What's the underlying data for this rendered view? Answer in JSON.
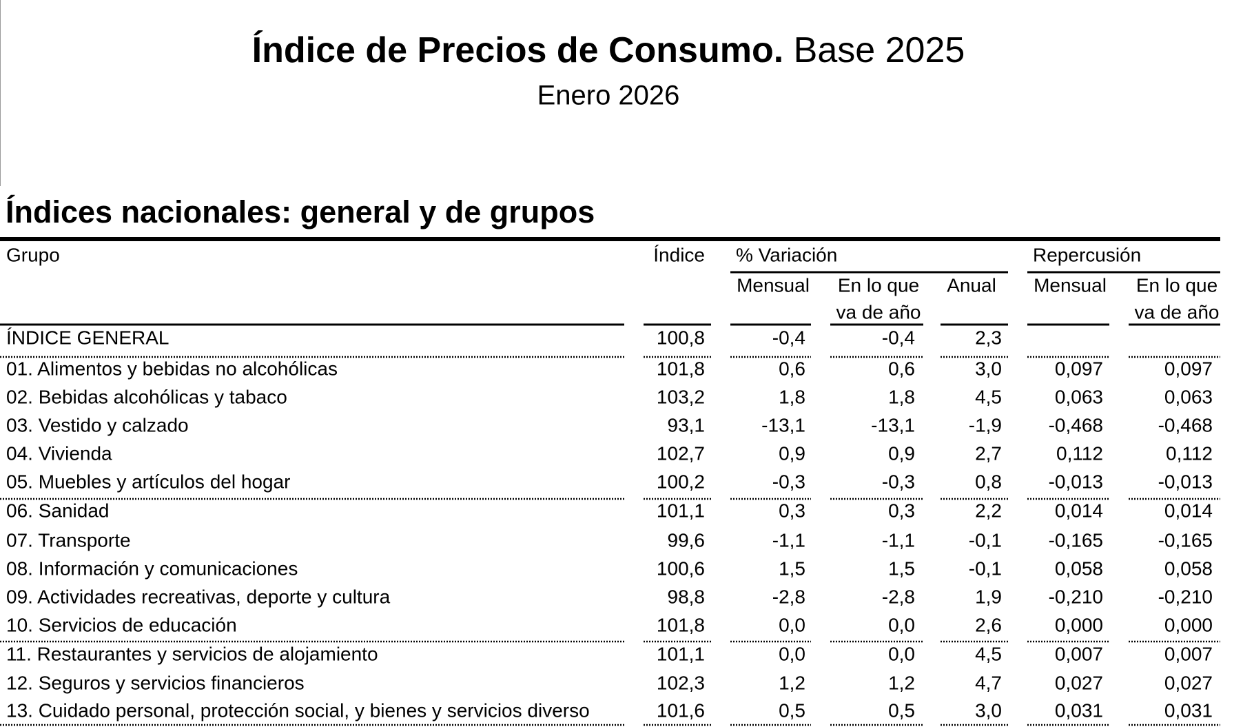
{
  "header": {
    "title_bold": "Índice de Precios de Consumo.",
    "title_rest": "Base 2025",
    "subtitle": "Enero 2026"
  },
  "section_title": "Índices nacionales: general y de grupos",
  "table": {
    "headers": {
      "grupo": "Grupo",
      "indice": "Índice",
      "variacion": "% Variación",
      "repercusion": "Repercusión",
      "sub": [
        "Mensual",
        "En lo que",
        "Anual",
        "Mensual",
        "En lo que"
      ],
      "sub2": [
        "va de año",
        "va de año"
      ]
    },
    "rows": [
      [
        "ÍNDICE GENERAL",
        "100,8",
        "-0,4",
        "-0,4",
        "2,3"
      ],
      [
        "01. Alimentos y bebidas no alcohólicas",
        "101,8",
        "0,6",
        "0,6",
        "3,0",
        "0,097",
        "0,097"
      ],
      [
        "02. Bebidas alcohólicas y tabaco",
        "103,2",
        "1,8",
        "1,8",
        "4,5",
        "0,063",
        "0,063"
      ],
      [
        "03. Vestido y calzado",
        "93,1",
        "-13,1",
        "-13,1",
        "-1,9",
        "-0,468",
        "-0,468"
      ],
      [
        "04. Vivienda",
        "102,7",
        "0,9",
        "0,9",
        "2,7",
        "0,112",
        "0,112"
      ],
      [
        "05. Muebles y artículos del hogar",
        "100,2",
        "-0,3",
        "-0,3",
        "0,8",
        "-0,013",
        "-0,013"
      ],
      [
        "06. Sanidad",
        "101,1",
        "0,3",
        "0,3",
        "2,2",
        "0,014",
        "0,014"
      ],
      [
        "07. Transporte",
        "99,6",
        "-1,1",
        "-1,1",
        "-0,1",
        "-0,165",
        "-0,165"
      ],
      [
        "08. Información y comunicaciones",
        "100,6",
        "1,5",
        "1,5",
        "-0,1",
        "0,058",
        "0,058"
      ],
      [
        "09. Actividades recreativas, deporte y cultura",
        "98,8",
        "-2,8",
        "-2,8",
        "1,9",
        "-0,210",
        "-0,210"
      ],
      [
        "10. Servicios de educación",
        "101,8",
        "0,0",
        "0,0",
        "2,6",
        "0,000",
        "0,000"
      ],
      [
        "11. Restaurantes y servicios de alojamiento",
        "101,1",
        "0,0",
        "0,0",
        "4,5",
        "0,007",
        "0,007"
      ],
      [
        "12. Seguros y servicios financieros",
        "102,3",
        "1,2",
        "1,2",
        "4,7",
        "0,027",
        "0,027"
      ],
      [
        "13. Cuidado personal, protección social, y bienes y servicios diverso",
        "101,6",
        "0,5",
        "0,5",
        "3,0",
        "0,031",
        "0,031"
      ]
    ]
  }
}
